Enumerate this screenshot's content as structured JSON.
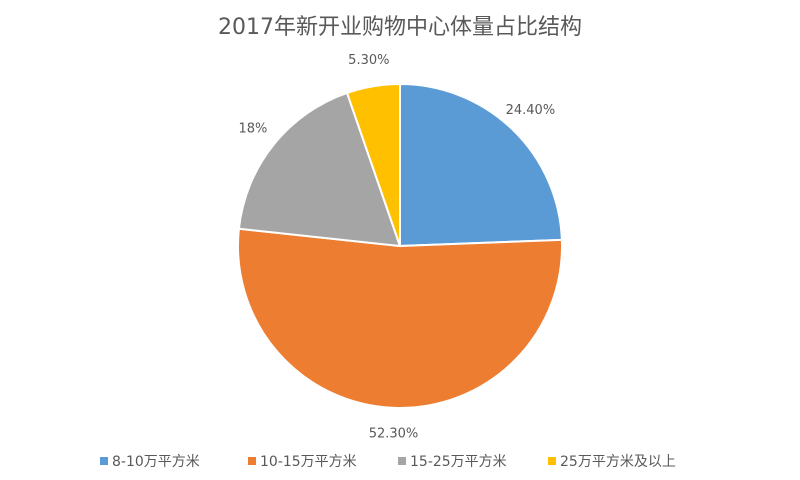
{
  "chart_data": {
    "type": "pie",
    "title": "2017年新开业购物中心体量占比结构",
    "categories": [
      "8-10万平方米",
      "10-15万平方米",
      "15-25万平方米",
      "25万平方米及以上"
    ],
    "values": [
      24.4,
      52.3,
      18,
      5.3
    ],
    "value_labels": [
      "24.40%",
      "52.30%",
      "18%",
      "5.30%"
    ],
    "colors": [
      "#5b9bd5",
      "#ed7d31",
      "#a5a5a5",
      "#ffc000"
    ],
    "legend": "bottom"
  }
}
